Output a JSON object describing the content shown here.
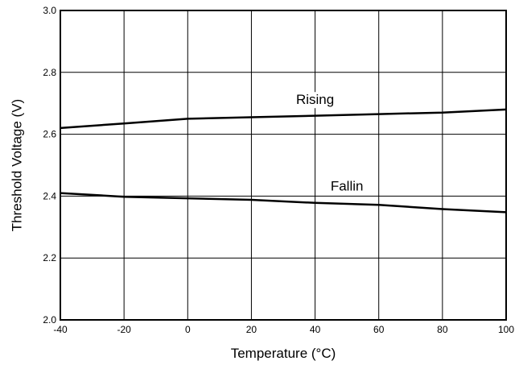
{
  "chart_data": {
    "type": "line",
    "title": "",
    "xlabel": "Temperature (°C)",
    "ylabel": "Threshold Voltage (V)",
    "xlim": [
      -40,
      100
    ],
    "ylim": [
      2.0,
      3.0
    ],
    "xticks": [
      "-40",
      "-20",
      "0",
      "20",
      "40",
      "60",
      "80",
      "100"
    ],
    "xtick_values": [
      -40,
      -20,
      0,
      20,
      40,
      60,
      80,
      100
    ],
    "yticks": [
      "2.0",
      "2.2",
      "2.4",
      "2.6",
      "2.8",
      "3.0"
    ],
    "ytick_values": [
      2.0,
      2.2,
      2.4,
      2.6,
      2.8,
      3.0
    ],
    "grid": true,
    "legend": "none",
    "series": [
      {
        "name": "Rising",
        "x": [
          -40,
          -20,
          0,
          20,
          40,
          60,
          80,
          100
        ],
        "values": [
          2.62,
          2.635,
          2.65,
          2.655,
          2.66,
          2.665,
          2.67,
          2.68
        ],
        "label": {
          "text": "Rising",
          "x": 40,
          "y": 2.7
        }
      },
      {
        "name": "Fallin",
        "x": [
          -40,
          -20,
          0,
          20,
          40,
          60,
          80,
          100
        ],
        "values": [
          2.41,
          2.398,
          2.393,
          2.388,
          2.378,
          2.372,
          2.358,
          2.348
        ],
        "label": {
          "text": "Fallin",
          "x": 50,
          "y": 2.42
        }
      }
    ]
  }
}
